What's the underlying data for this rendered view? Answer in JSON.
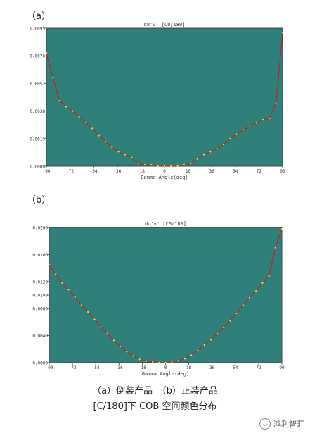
{
  "panels": [
    {
      "label": "（a）"
    },
    {
      "label": "（b）"
    }
  ],
  "captions": {
    "line1": "（a）倒装产品　（b）正装产品",
    "line2": "[C/180]下 COB 空间颜色分布"
  },
  "watermark": {
    "text": "鸿利智汇",
    "icon": "wechat-icon"
  },
  "colors": {
    "plot_bg": "#2f7f7a",
    "curve": "#c8201a",
    "points": "#f2e84b"
  },
  "chart_data": [
    {
      "type": "line",
      "title": "du'v' [C0/180]",
      "xlabel": "Gamma Angle(deg)",
      "ylabel": "",
      "xlim": [
        -90,
        90
      ],
      "ylim": [
        0,
        0.0095
      ],
      "x_ticks": [
        "-90",
        "-72",
        "-54",
        "-36",
        "-18",
        "0",
        "18",
        "36",
        "54",
        "72",
        "90"
      ],
      "y_ticks": [
        "0.0000",
        "0.0019",
        "0.0038",
        "0.0057",
        "0.0076",
        "0.0095"
      ],
      "grid": false,
      "x": [
        -90,
        -85,
        -80,
        -75,
        -70,
        -65,
        -60,
        -55,
        -50,
        -45,
        -40,
        -35,
        -30,
        -25,
        -20,
        -15,
        -10,
        -5,
        0,
        5,
        10,
        15,
        20,
        25,
        30,
        35,
        40,
        45,
        50,
        55,
        60,
        65,
        70,
        75,
        80,
        85,
        90
      ],
      "values": [
        0.0078,
        0.0061,
        0.0045,
        0.0041,
        0.0038,
        0.0034,
        0.003,
        0.0026,
        0.0021,
        0.0017,
        0.0013,
        0.001,
        0.0008,
        0.0006,
        0.0002,
        0.0001,
        0.0001,
        0.0,
        0.0,
        0.0,
        0.0,
        0.0001,
        0.0002,
        0.0005,
        0.0008,
        0.001,
        0.0012,
        0.0015,
        0.0019,
        0.0022,
        0.0025,
        0.0027,
        0.003,
        0.0032,
        0.0033,
        0.0043,
        0.0092
      ]
    },
    {
      "type": "line",
      "title": "du'v' [C0/180]",
      "xlabel": "Gamma Angle(deg)",
      "ylabel": "",
      "xlim": [
        -90,
        90
      ],
      "ylim": [
        0,
        0.02
      ],
      "x_ticks": [
        "-90",
        "-72",
        "-54",
        "-36",
        "-18",
        "0",
        "18",
        "36",
        "54",
        "72",
        "90"
      ],
      "y_ticks": [
        "0.0000",
        "0.0040",
        "0.0080",
        "0.0100",
        "0.0120",
        "0.0160",
        "0.0200"
      ],
      "grid": false,
      "x": [
        -90,
        -85,
        -80,
        -75,
        -70,
        -65,
        -60,
        -55,
        -50,
        -45,
        -40,
        -35,
        -30,
        -25,
        -20,
        -15,
        -10,
        -5,
        0,
        5,
        10,
        15,
        20,
        25,
        30,
        35,
        40,
        45,
        50,
        55,
        60,
        65,
        70,
        75,
        80,
        85,
        90
      ],
      "values": [
        0.0145,
        0.0131,
        0.0118,
        0.0108,
        0.0097,
        0.0085,
        0.0075,
        0.0064,
        0.0053,
        0.0043,
        0.0033,
        0.0024,
        0.0016,
        0.001,
        0.0005,
        0.0002,
        0.0001,
        0.0,
        0.0,
        0.0001,
        0.0003,
        0.0006,
        0.0011,
        0.0018,
        0.0026,
        0.0034,
        0.0043,
        0.0052,
        0.0062,
        0.0073,
        0.0085,
        0.0096,
        0.0106,
        0.0118,
        0.0128,
        0.017,
        0.0198
      ]
    }
  ]
}
